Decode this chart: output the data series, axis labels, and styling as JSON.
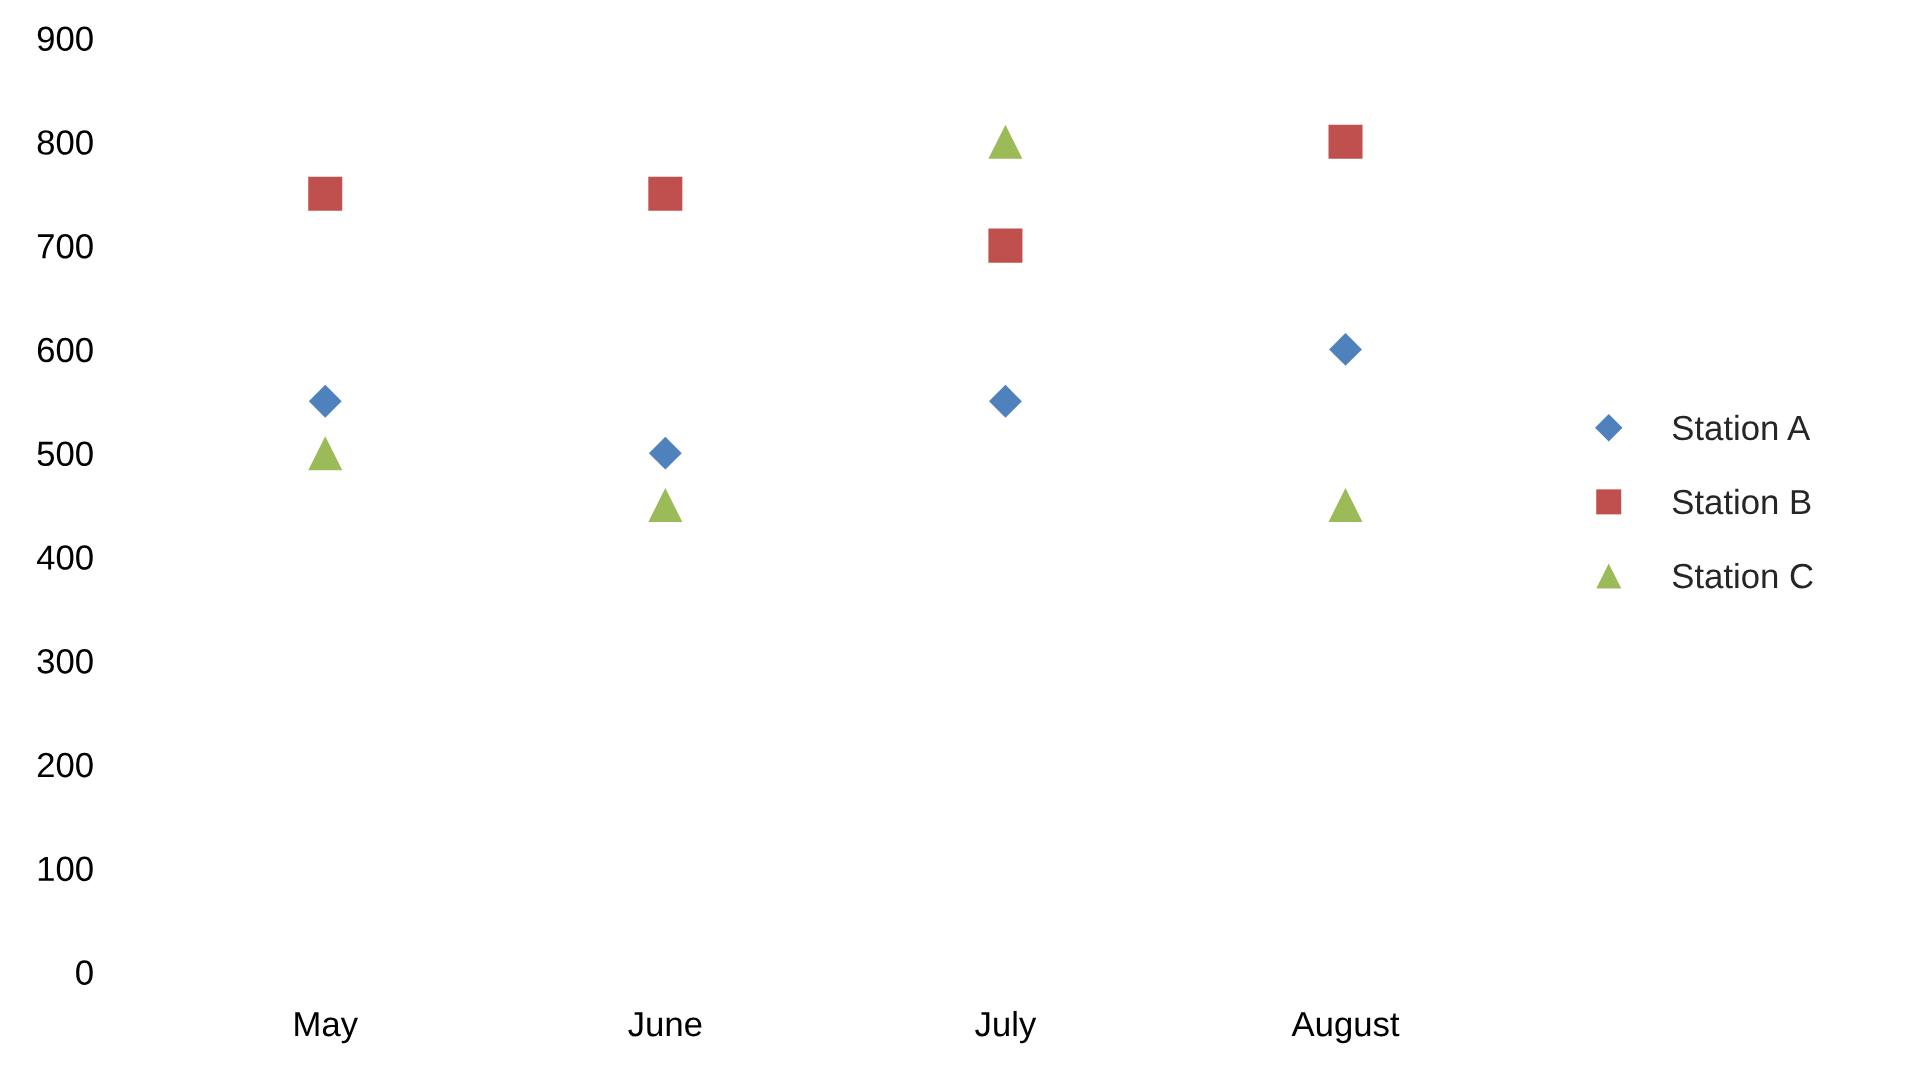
{
  "chart_data": {
    "type": "scatter",
    "categories": [
      "May",
      "June",
      "July",
      "August"
    ],
    "series": [
      {
        "name": "Station A",
        "color": "#4f81bd",
        "marker": "diamond",
        "values": [
          550,
          500,
          550,
          600
        ]
      },
      {
        "name": "Station B",
        "color": "#c0504d",
        "marker": "square",
        "values": [
          750,
          750,
          700,
          800
        ]
      },
      {
        "name": "Station C",
        "color": "#9bbb59",
        "marker": "triangle",
        "values": [
          500,
          450,
          800,
          450
        ]
      }
    ],
    "ylim": [
      0,
      900
    ],
    "yticks": [
      0,
      100,
      200,
      300,
      400,
      500,
      600,
      700,
      800,
      900
    ],
    "grid": false,
    "legend": "right"
  }
}
